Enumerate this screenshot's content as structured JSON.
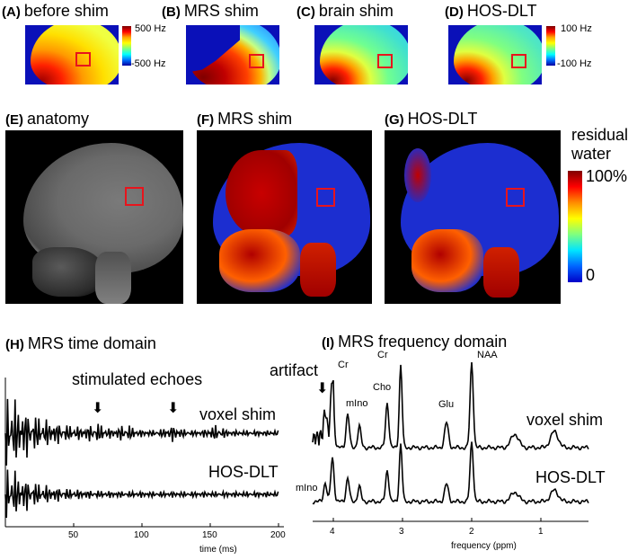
{
  "top_row": {
    "panels": [
      {
        "letter": "(A)",
        "title": "before shim"
      },
      {
        "letter": "(B)",
        "title": "MRS shim"
      },
      {
        "letter": "(C)",
        "title": "brain shim"
      },
      {
        "letter": "(D)",
        "title": "HOS-DLT"
      }
    ],
    "colorbar_left": {
      "max": "500 Hz",
      "min": "-500 Hz"
    },
    "colorbar_right": {
      "max": "100 Hz",
      "min": "-100 Hz"
    }
  },
  "middle_row": {
    "panels": [
      {
        "letter": "(E)",
        "title": "anatomy"
      },
      {
        "letter": "(F)",
        "title": "MRS shim"
      },
      {
        "letter": "(G)",
        "title": "HOS-DLT"
      }
    ],
    "colorbar": {
      "title_line1": "residual",
      "title_line2": "water",
      "max": "100%",
      "min": "0"
    }
  },
  "time_domain": {
    "letter": "(H)",
    "title": "MRS time domain",
    "annotation": "stimulated echoes",
    "trace_labels": [
      "voxel shim",
      "HOS-DLT"
    ],
    "xticks": [
      "50",
      "100",
      "150",
      "200"
    ],
    "xlabel": "time (ms)"
  },
  "freq_domain": {
    "letter": "(I)",
    "title": "MRS frequency domain",
    "annotation": "artifact",
    "peaks": [
      "Cr",
      "Cr",
      "mIno",
      "Cho",
      "Glu",
      "NAA",
      "mIno"
    ],
    "trace_labels": [
      "voxel shim",
      "HOS-DLT"
    ],
    "xticks": [
      "4",
      "3",
      "2",
      "1"
    ],
    "xlabel": "frequency (ppm)"
  },
  "colors": {
    "roi": "#e8141c",
    "map_background": "#0a10b8"
  }
}
